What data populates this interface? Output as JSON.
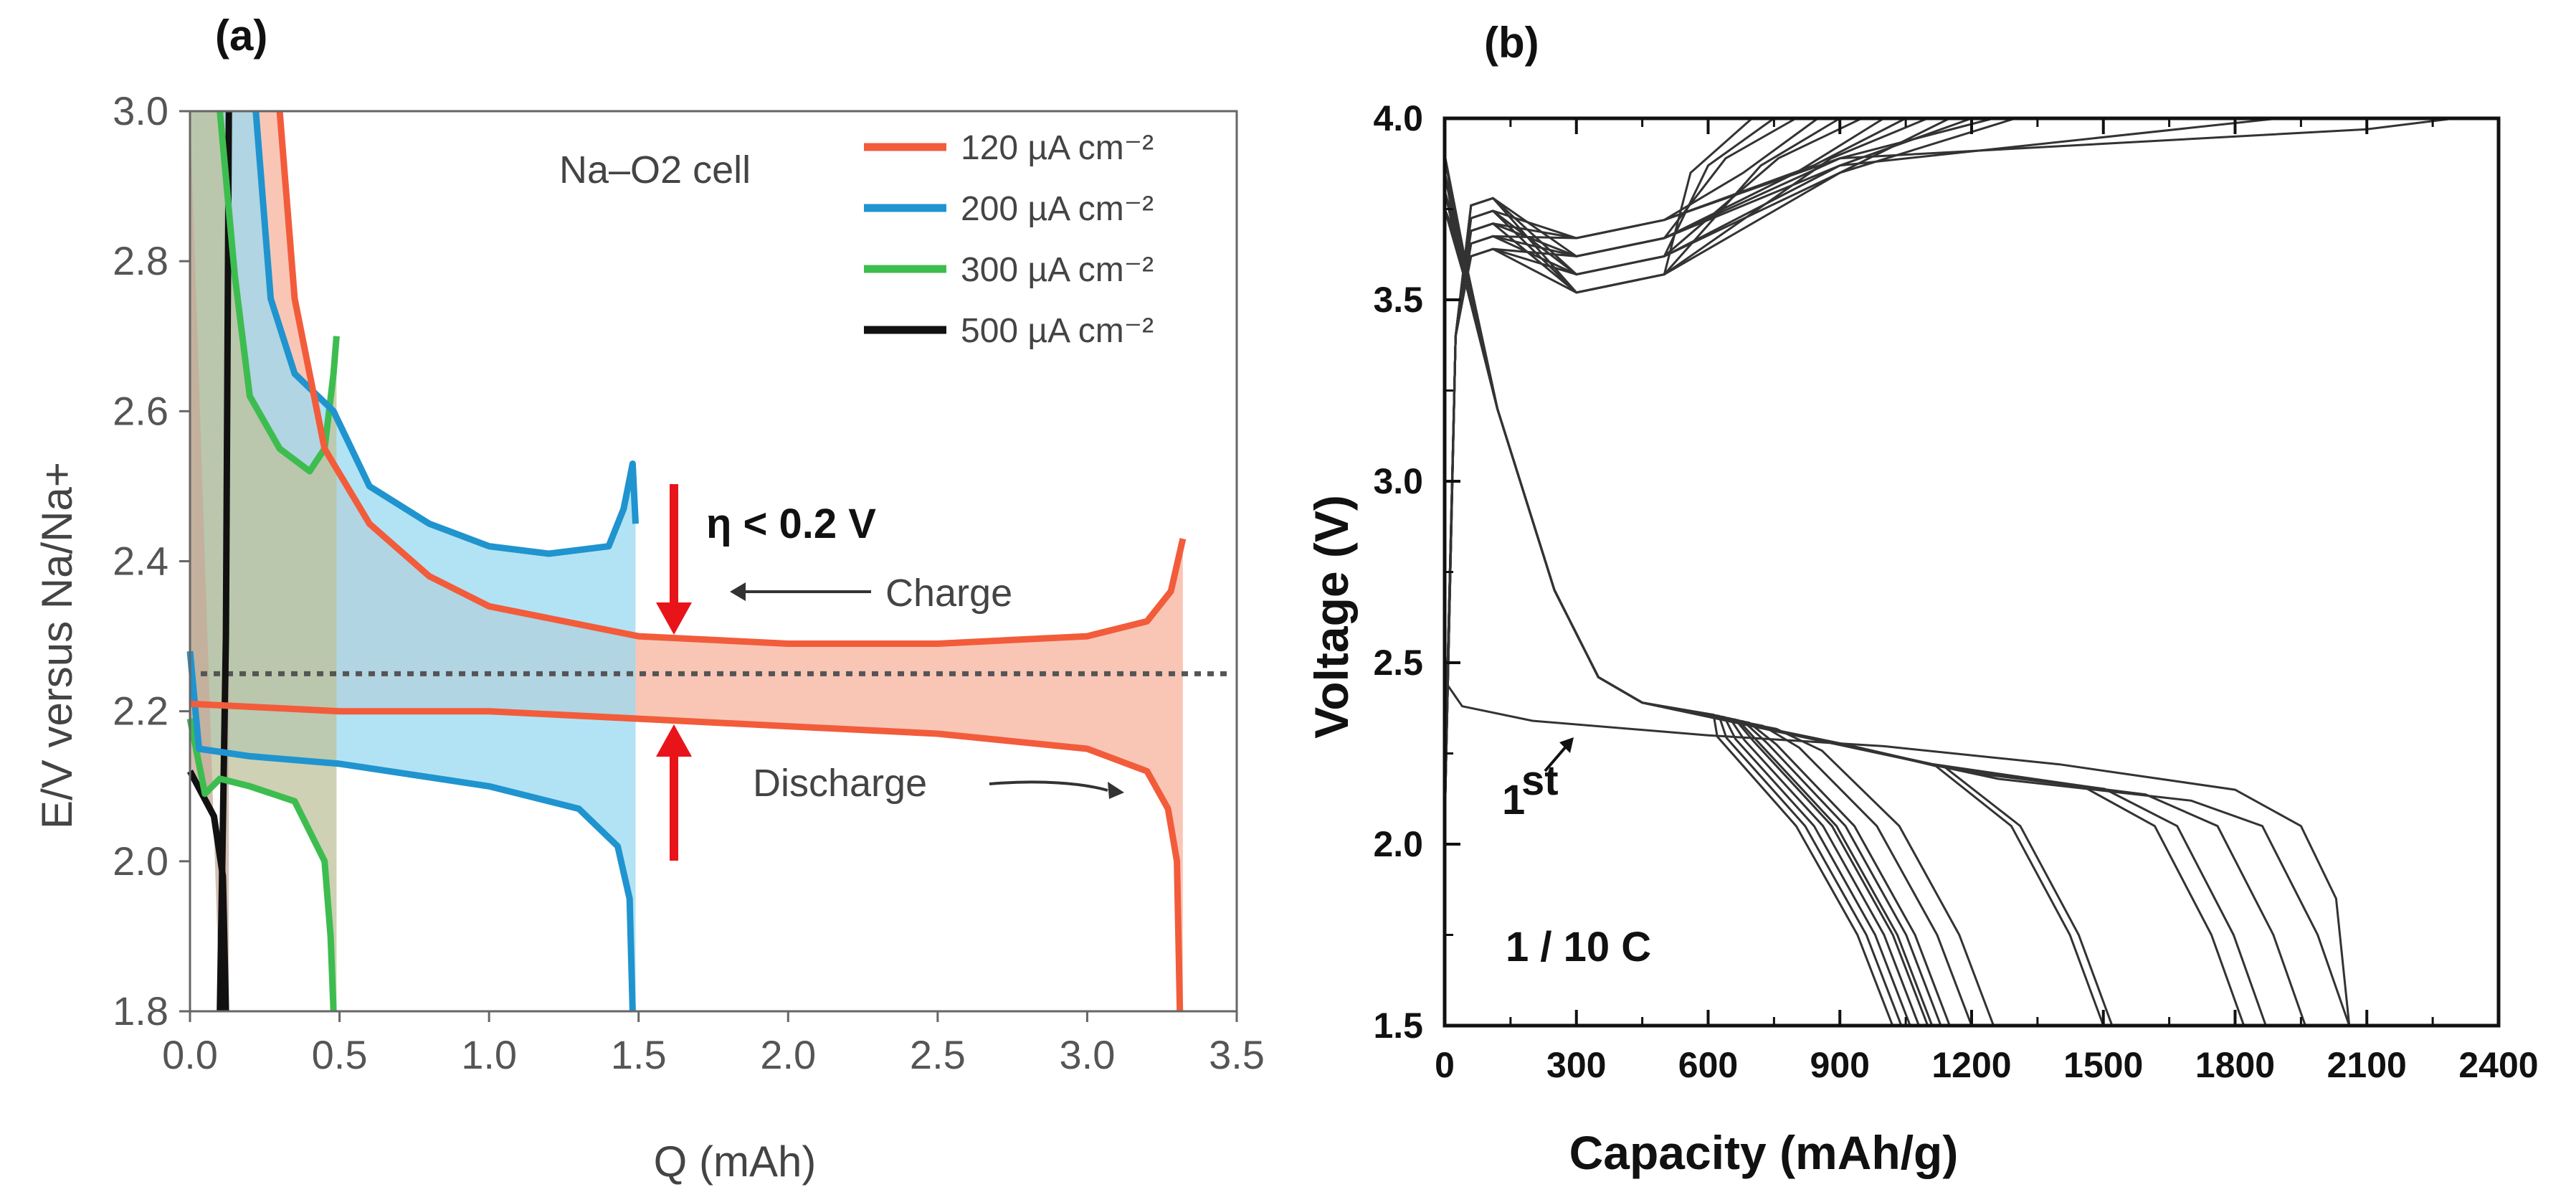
{
  "chart_data": [
    {
      "panel": "(a)",
      "type": "line",
      "xlabel": "Q (mAh)",
      "ylabel": "E/V versus Na/Na+",
      "xlim": [
        0,
        3.5
      ],
      "ylim": [
        1.8,
        3.0
      ],
      "xticks": [
        "0.0",
        "0.5",
        "1.0",
        "1.5",
        "2.0",
        "2.5",
        "3.0",
        "3.5"
      ],
      "yticks": [
        "1.8",
        "2.0",
        "2.2",
        "2.4",
        "2.6",
        "2.8",
        "3.0"
      ],
      "cell_label": "Na–O2 cell",
      "reference_line": 2.25,
      "annotations": {
        "eta": "η < 0.2 V",
        "charge": "Charge",
        "discharge": "Discharge"
      },
      "series": [
        {
          "name": "120 µA cm⁻²",
          "color": "#f25c3b",
          "fill": "#f7b39d",
          "charge": [
            [
              0.3,
              3.0
            ],
            [
              0.35,
              2.75
            ],
            [
              0.45,
              2.55
            ],
            [
              0.6,
              2.45
            ],
            [
              0.8,
              2.38
            ],
            [
              1.0,
              2.34
            ],
            [
              1.5,
              2.3
            ],
            [
              2.0,
              2.29
            ],
            [
              2.5,
              2.29
            ],
            [
              3.0,
              2.3
            ],
            [
              3.2,
              2.32
            ],
            [
              3.28,
              2.36
            ],
            [
              3.32,
              2.43
            ]
          ],
          "discharge": [
            [
              0.0,
              2.21
            ],
            [
              0.5,
              2.2
            ],
            [
              1.0,
              2.2
            ],
            [
              1.5,
              2.19
            ],
            [
              2.0,
              2.18
            ],
            [
              2.5,
              2.17
            ],
            [
              3.0,
              2.15
            ],
            [
              3.2,
              2.12
            ],
            [
              3.27,
              2.07
            ],
            [
              3.3,
              2.0
            ],
            [
              3.31,
              1.8
            ]
          ]
        },
        {
          "name": "200 µA cm⁻²",
          "color": "#1f94cf",
          "fill": "#98d9f0",
          "charge": [
            [
              0.22,
              3.0
            ],
            [
              0.27,
              2.75
            ],
            [
              0.35,
              2.65
            ],
            [
              0.48,
              2.6
            ],
            [
              0.6,
              2.5
            ],
            [
              0.8,
              2.45
            ],
            [
              1.0,
              2.42
            ],
            [
              1.2,
              2.41
            ],
            [
              1.4,
              2.42
            ],
            [
              1.45,
              2.47
            ],
            [
              1.48,
              2.53
            ],
            [
              1.49,
              2.45
            ]
          ],
          "discharge": [
            [
              0.0,
              2.28
            ],
            [
              0.03,
              2.15
            ],
            [
              0.2,
              2.14
            ],
            [
              0.5,
              2.13
            ],
            [
              1.0,
              2.1
            ],
            [
              1.3,
              2.07
            ],
            [
              1.43,
              2.02
            ],
            [
              1.47,
              1.95
            ],
            [
              1.48,
              1.8
            ]
          ]
        },
        {
          "name": "300 µA cm⁻²",
          "color": "#3dbd4f",
          "fill": "#bdc29a",
          "charge": [
            [
              0.1,
              3.0
            ],
            [
              0.15,
              2.78
            ],
            [
              0.2,
              2.62
            ],
            [
              0.3,
              2.55
            ],
            [
              0.4,
              2.52
            ],
            [
              0.45,
              2.55
            ],
            [
              0.48,
              2.65
            ],
            [
              0.49,
              2.7
            ]
          ],
          "discharge": [
            [
              0.0,
              2.19
            ],
            [
              0.05,
              2.09
            ],
            [
              0.1,
              2.11
            ],
            [
              0.2,
              2.1
            ],
            [
              0.35,
              2.08
            ],
            [
              0.45,
              2.0
            ],
            [
              0.47,
              1.9
            ],
            [
              0.48,
              1.8
            ]
          ]
        },
        {
          "name": "500 µA cm⁻²",
          "color": "#111111",
          "fill": "#c6a99a",
          "charge": [
            [
              0.1,
              1.8
            ],
            [
              0.12,
              2.3
            ],
            [
              0.13,
              3.0
            ]
          ],
          "discharge": [
            [
              0.0,
              2.12
            ],
            [
              0.04,
              2.09
            ],
            [
              0.08,
              2.06
            ],
            [
              0.11,
              1.98
            ],
            [
              0.12,
              1.8
            ]
          ]
        }
      ]
    },
    {
      "panel": "(b)",
      "type": "line",
      "xlabel": "Capacity (mAh/g)",
      "ylabel": "Voltage (V)",
      "xlim": [
        0,
        2400
      ],
      "ylim": [
        1.5,
        4.0
      ],
      "xticks": [
        "0",
        "300",
        "600",
        "900",
        "1200",
        "1500",
        "1800",
        "2100",
        "2400"
      ],
      "yticks": [
        "1.5",
        "2.0",
        "2.5",
        "3.0",
        "3.5",
        "4.0"
      ],
      "rate_label": "1 / 10 C",
      "first_cycle_label": "1",
      "first_cycle_sup": "st",
      "cutoff_capacities": [
        1020,
        1040,
        1060,
        1080,
        1100,
        1110,
        1130,
        1150,
        1200,
        1250,
        1500,
        1520,
        1820,
        1870,
        1960,
        2060
      ],
      "charge_end_capacities": [
        700,
        750,
        800,
        850,
        900,
        950,
        1000,
        1050,
        1100,
        1150,
        1200,
        1250,
        1300,
        1900,
        2100
      ],
      "first_discharge": [
        [
          0,
          2.45
        ],
        [
          40,
          2.38
        ],
        [
          200,
          2.34
        ],
        [
          600,
          2.3
        ],
        [
          1000,
          2.27
        ],
        [
          1400,
          2.22
        ],
        [
          1800,
          2.15
        ],
        [
          1950,
          2.05
        ],
        [
          2030,
          1.85
        ],
        [
          2060,
          1.5
        ]
      ]
    }
  ]
}
